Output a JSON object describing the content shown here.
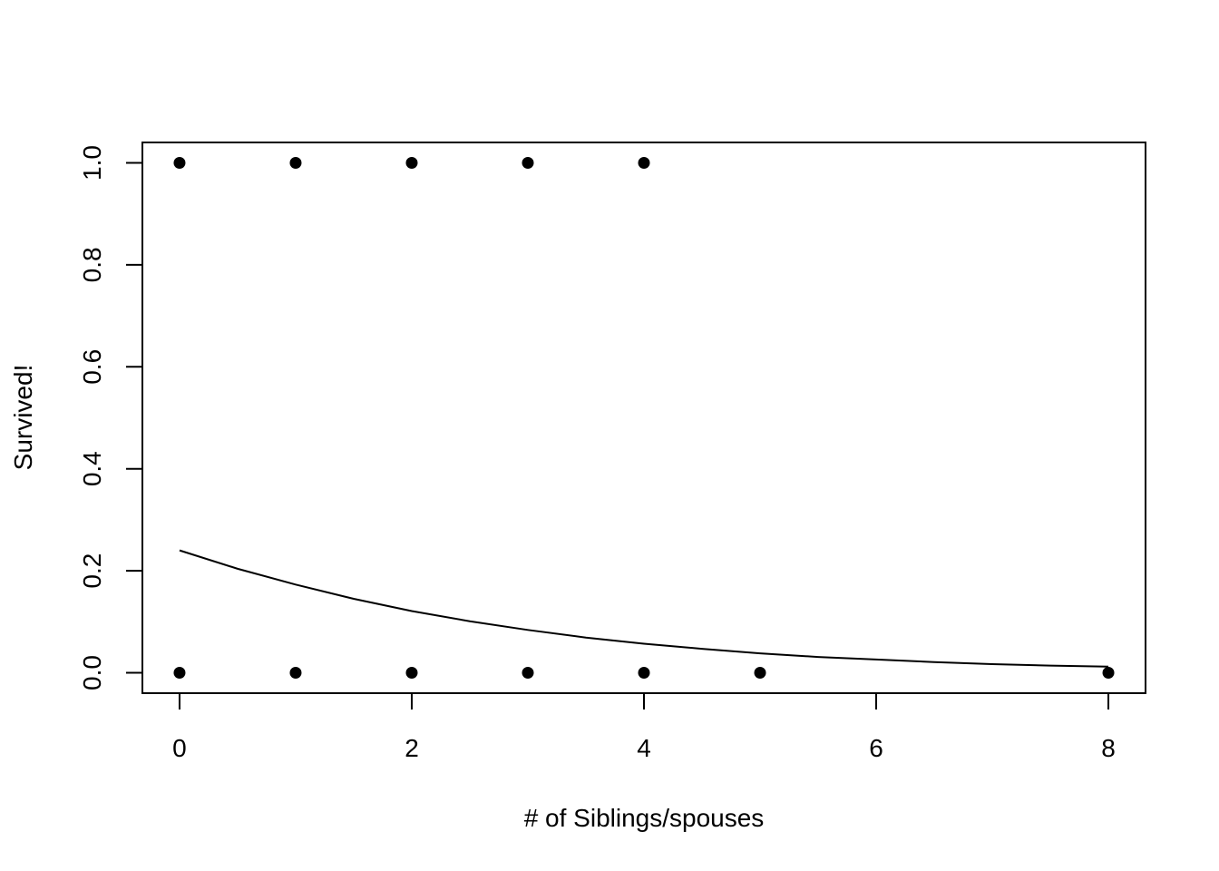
{
  "chart_data": {
    "type": "scatter",
    "title": "",
    "xlabel": "# of Siblings/spouses",
    "ylabel": "Survived!",
    "xlim": [
      -0.32,
      8.32
    ],
    "ylim": [
      -0.04,
      1.04
    ],
    "x_ticks": [
      0,
      2,
      4,
      6,
      8
    ],
    "y_ticks": [
      0.0,
      0.2,
      0.4,
      0.6,
      0.8,
      1.0
    ],
    "x_tick_labels": [
      "0",
      "2",
      "4",
      "6",
      "8"
    ],
    "y_tick_labels": [
      "0.0",
      "0.2",
      "0.4",
      "0.6",
      "0.8",
      "1.0"
    ],
    "grid": false,
    "legend": "none",
    "points": [
      {
        "x": 0,
        "y": 1
      },
      {
        "x": 1,
        "y": 1
      },
      {
        "x": 2,
        "y": 1
      },
      {
        "x": 3,
        "y": 1
      },
      {
        "x": 4,
        "y": 1
      },
      {
        "x": 0,
        "y": 0
      },
      {
        "x": 1,
        "y": 0
      },
      {
        "x": 2,
        "y": 0
      },
      {
        "x": 3,
        "y": 0
      },
      {
        "x": 4,
        "y": 0
      },
      {
        "x": 5,
        "y": 0
      },
      {
        "x": 8,
        "y": 0
      }
    ],
    "fit_curve": {
      "x": [
        0,
        0.5,
        1,
        1.5,
        2,
        2.5,
        3,
        3.5,
        4,
        4.5,
        5,
        5.5,
        6,
        6.5,
        7,
        7.5,
        8
      ],
      "y": [
        0.24,
        0.204,
        0.173,
        0.145,
        0.121,
        0.101,
        0.084,
        0.069,
        0.057,
        0.047,
        0.038,
        0.031,
        0.026,
        0.021,
        0.017,
        0.014,
        0.012
      ]
    },
    "colors": {
      "points": "#000000",
      "curve": "#000000",
      "frame": "#000000"
    }
  }
}
